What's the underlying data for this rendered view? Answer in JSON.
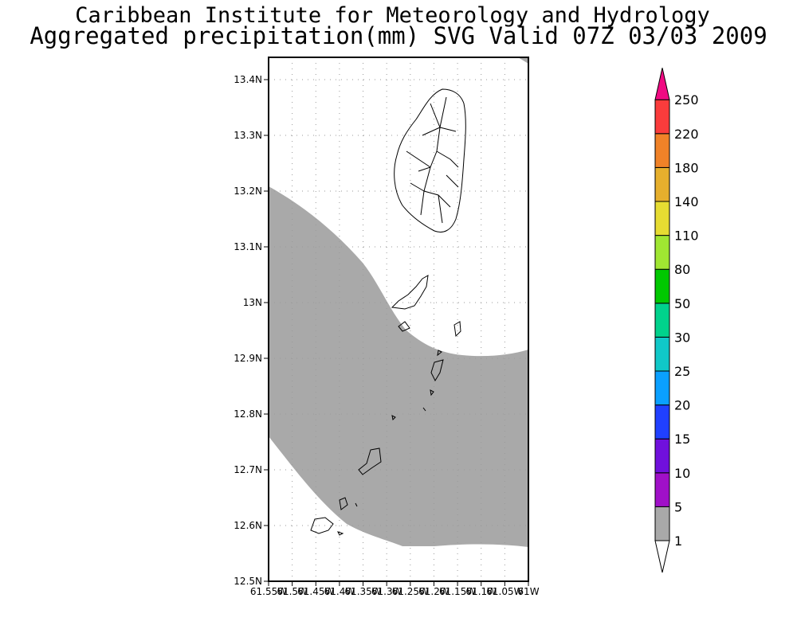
{
  "header": {
    "title": "Caribbean Institute for Meteorology and Hydrology",
    "subtitle": "Aggregated precipitation(mm) SVG Valid 07Z 03/03 2009"
  },
  "map": {
    "y_ticks": [
      "13.4N",
      "13.3N",
      "13.2N",
      "13.1N",
      "13N",
      "12.9N",
      "12.8N",
      "12.7N",
      "12.6N",
      "12.5N"
    ],
    "x_ticks": [
      "61.55W",
      "61.5W",
      "61.45W",
      "61.4W",
      "61.35W",
      "61.3W",
      "61.25W",
      "61.2W",
      "61.15W",
      "61.1W",
      "61.05W",
      "61W"
    ],
    "lon_range": [
      -61.55,
      -61.0
    ],
    "lat_range": [
      12.5,
      13.44
    ],
    "grid": true,
    "rain_field_class": "1-5 mm",
    "rain_field_color": "#a9a9a9"
  },
  "legend": {
    "labels": [
      "1",
      "5",
      "10",
      "15",
      "20",
      "25",
      "30",
      "50",
      "80",
      "110",
      "140",
      "180",
      "220",
      "250"
    ],
    "colors": [
      "#a9a9a9",
      "#a010c8",
      "#7010dc",
      "#2040ff",
      "#0aa0ff",
      "#10c8c8",
      "#00d28c",
      "#00c800",
      "#a0e632",
      "#e6dc32",
      "#e6af2d",
      "#f08228",
      "#fa3c3c",
      "#f00a82"
    ]
  }
}
